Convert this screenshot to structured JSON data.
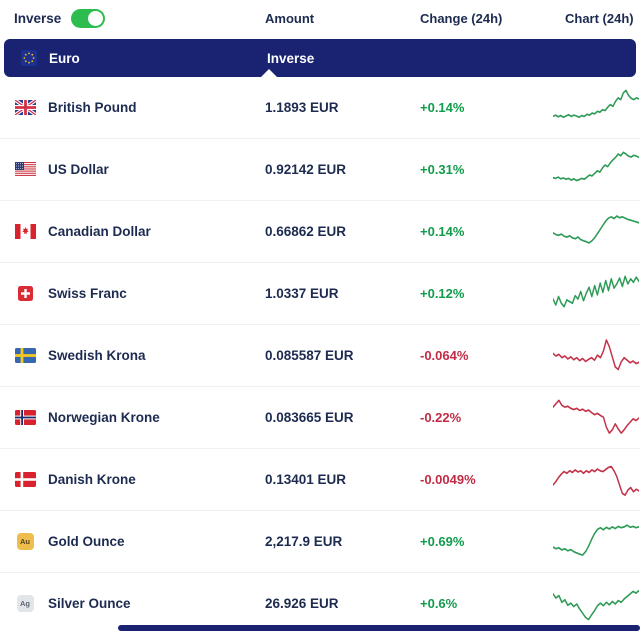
{
  "controls": {
    "inverse_label": "Inverse",
    "toggle_on": true
  },
  "columns": {
    "amount": "Amount",
    "change": "Change (24h)",
    "chart": "Chart (24h)"
  },
  "section": {
    "base_currency": "Euro",
    "amount_header": "Inverse"
  },
  "colors": {
    "navy": "#1a2272",
    "text": "#1d2b50",
    "green_text": "#119c4b",
    "red_text": "#c22b45",
    "green_line": "#2e9b57",
    "red_line": "#c33349",
    "toggle_green": "#2dbd4e",
    "gold_badge": "#efbd4b",
    "silver_badge": "#e2e6eb"
  },
  "rows": [
    {
      "name": "British Pound",
      "flag": "gb",
      "amount": "1.1893 EUR",
      "change": "+0.14%",
      "direction": "up"
    },
    {
      "name": "US Dollar",
      "flag": "us",
      "amount": "0.92142 EUR",
      "change": "+0.31%",
      "direction": "up"
    },
    {
      "name": "Canadian Dollar",
      "flag": "ca",
      "amount": "0.66862 EUR",
      "change": "+0.14%",
      "direction": "up"
    },
    {
      "name": "Swiss Franc",
      "flag": "ch",
      "amount": "1.0337 EUR",
      "change": "+0.12%",
      "direction": "up"
    },
    {
      "name": "Swedish Krona",
      "flag": "se",
      "amount": "0.085587 EUR",
      "change": "-0.064%",
      "direction": "down"
    },
    {
      "name": "Norwegian Krone",
      "flag": "no",
      "amount": "0.083665 EUR",
      "change": "-0.22%",
      "direction": "down"
    },
    {
      "name": "Danish Krone",
      "flag": "dk",
      "amount": "0.13401 EUR",
      "change": "-0.0049%",
      "direction": "down"
    },
    {
      "name": "Gold Ounce",
      "flag": "au",
      "badge": "Au",
      "amount": "2,217.9 EUR",
      "change": "+0.69%",
      "direction": "up"
    },
    {
      "name": "Silver Ounce",
      "flag": "ag",
      "badge": "Ag",
      "amount": "26.926 EUR",
      "change": "+0.6%",
      "direction": "up"
    }
  ],
  "chart_data": [
    {
      "type": "line",
      "name": "British Pound",
      "trend": "up",
      "values": [
        30,
        33,
        29,
        32,
        28,
        31,
        34,
        30,
        33,
        31,
        28,
        32,
        30,
        35,
        33,
        38,
        36,
        42,
        40,
        46,
        44,
        52,
        58,
        54,
        66,
        74,
        70,
        86,
        92,
        80,
        73,
        70,
        74,
        72
      ]
    },
    {
      "type": "line",
      "name": "US Dollar",
      "trend": "up",
      "values": [
        32,
        30,
        33,
        29,
        31,
        28,
        30,
        26,
        29,
        25,
        27,
        30,
        28,
        33,
        38,
        36,
        42,
        48,
        45,
        55,
        62,
        58,
        67,
        74,
        80,
        88,
        84,
        92,
        88,
        83,
        81,
        85,
        83,
        80
      ]
    },
    {
      "type": "line",
      "name": "Canadian Dollar",
      "trend": "up",
      "values": [
        48,
        44,
        42,
        45,
        40,
        38,
        41,
        36,
        34,
        38,
        32,
        29,
        27,
        24,
        29,
        36,
        46,
        56,
        66,
        76,
        83,
        86,
        82,
        88,
        84,
        86,
        83,
        80,
        78,
        76,
        74,
        72
      ]
    },
    {
      "type": "line",
      "name": "Swiss Franc",
      "trend": "up",
      "values": [
        38,
        24,
        44,
        28,
        20,
        36,
        32,
        28,
        46,
        38,
        56,
        34,
        52,
        66,
        44,
        70,
        48,
        76,
        54,
        82,
        58,
        86,
        64,
        74,
        88,
        68,
        92,
        74,
        86,
        78,
        90,
        80
      ]
    },
    {
      "type": "line",
      "name": "Swedish Krona",
      "trend": "down",
      "values": [
        56,
        50,
        54,
        46,
        50,
        43,
        48,
        41,
        46,
        39,
        44,
        37,
        42,
        46,
        40,
        52,
        46,
        62,
        88,
        72,
        48,
        24,
        18,
        36,
        46,
        40,
        34,
        38,
        32,
        35
      ]
    },
    {
      "type": "line",
      "name": "Norwegian Krone",
      "trend": "down",
      "values": [
        76,
        84,
        92,
        80,
        76,
        78,
        73,
        70,
        73,
        68,
        71,
        66,
        69,
        63,
        58,
        61,
        56,
        52,
        28,
        14,
        22,
        36,
        24,
        14,
        22,
        32,
        40,
        48,
        44,
        50
      ]
    },
    {
      "type": "line",
      "name": "Danish Krone",
      "trend": "down",
      "values": [
        38,
        46,
        56,
        64,
        70,
        66,
        72,
        68,
        74,
        69,
        72,
        66,
        72,
        68,
        74,
        70,
        76,
        72,
        70,
        75,
        80,
        82,
        72,
        58,
        38,
        18,
        14,
        26,
        32,
        22,
        28,
        24
      ]
    },
    {
      "type": "line",
      "name": "Gold Ounce",
      "trend": "up",
      "values": [
        38,
        34,
        36,
        31,
        34,
        29,
        32,
        27,
        24,
        21,
        19,
        27,
        40,
        56,
        70,
        80,
        84,
        79,
        85,
        81,
        86,
        82,
        87,
        84,
        86,
        90,
        85,
        87,
        84,
        86
      ]
    },
    {
      "type": "line",
      "name": "Silver Ounce",
      "trend": "up",
      "values": [
        74,
        64,
        70,
        54,
        60,
        47,
        52,
        44,
        50,
        38,
        28,
        18,
        13,
        24,
        34,
        46,
        52,
        46,
        54,
        48,
        56,
        50,
        58,
        54,
        62,
        68,
        74,
        80,
        76,
        82
      ]
    }
  ]
}
